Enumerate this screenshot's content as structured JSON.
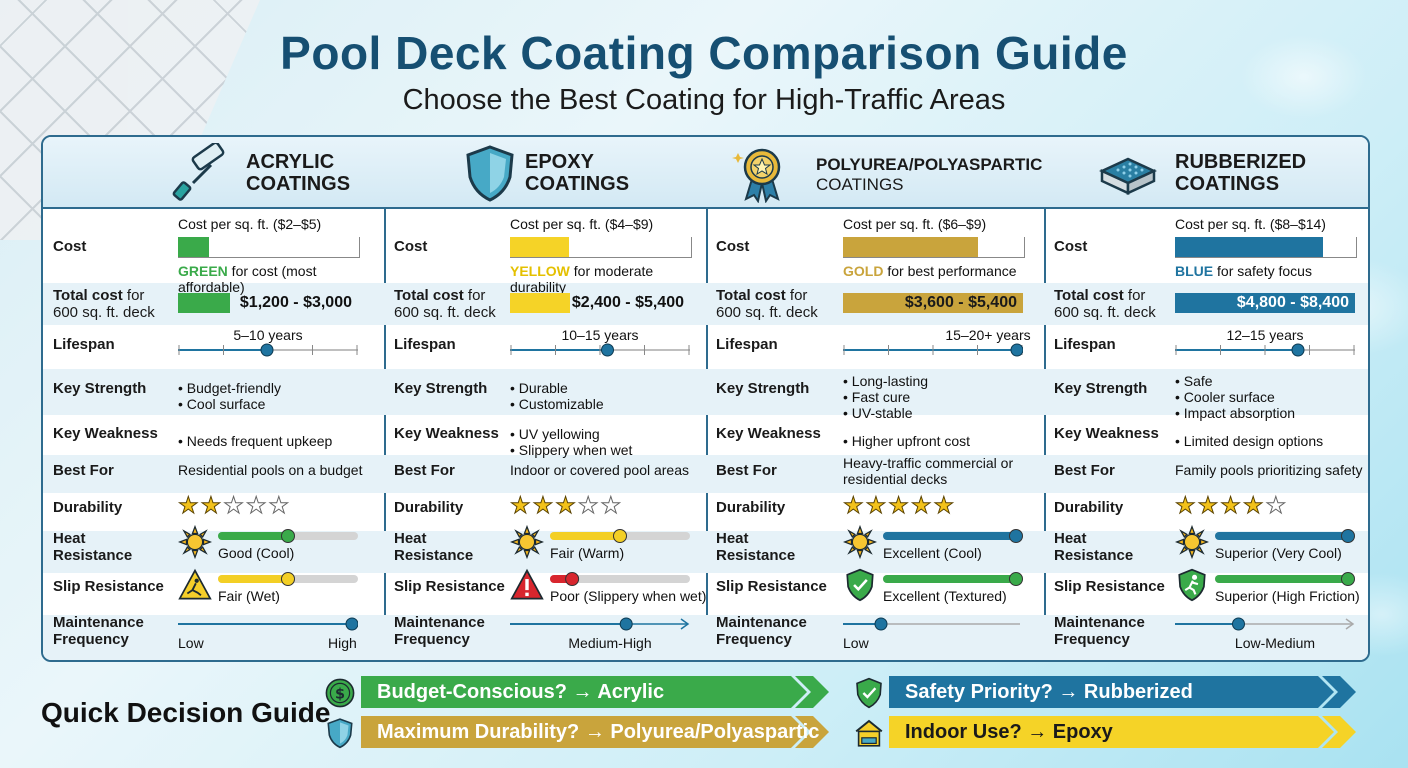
{
  "title": "Pool Deck Coating Comparison Guide",
  "subtitle": "Choose the Best Coating for High-Traffic Areas",
  "row_labels": {
    "cost": "Cost",
    "total_a": "Total cost",
    "total_b": " for",
    "total_c": "600 sq. ft. deck",
    "lifespan": "Lifespan",
    "strength": "Key Strength",
    "weakness": "Key Weakness",
    "best_for": "Best For",
    "durability": "Durability",
    "heat_a": "Heat",
    "heat_b": "Resistance",
    "slip": "Slip Resistance",
    "maint_a": "Maintenance",
    "maint_b": "Frequency"
  },
  "columns": [
    {
      "title_a": "ACRYLIC",
      "title_b": "COATINGS",
      "icon": "paint-roller-icon",
      "cost_range": "Cost per sq. ft. ($2–$5)",
      "cost_fill": 0.17,
      "color_word": "GREEN",
      "color_note": " for cost (most affordable)",
      "color": "#3aaa4a",
      "total_cost": "$1,200 - $3,000",
      "lifespan": "5–10 years",
      "lifespan_level": 0.5,
      "strengths": [
        "• Budget-friendly",
        "• Cool surface"
      ],
      "weaknesses": [
        "• Needs frequent upkeep"
      ],
      "best_for": [
        "Residential pools on a budget"
      ],
      "durability_stars": 2,
      "heat_label": "Good (Cool)",
      "heat_level": 0.5,
      "heat_color": "#3aaa4a",
      "heat_icon": "sun-icon",
      "slip_label": "Fair (Wet)",
      "slip_level": 0.5,
      "slip_color": "#f3cf25",
      "slip_icon": "wet-floor-sign-icon",
      "maint_low": "Low",
      "maint_high": "High",
      "maint_level": 1.0
    },
    {
      "title_a": "EPOXY",
      "title_b": "COATINGS",
      "icon": "shield-icon",
      "cost_range": "Cost per sq. ft. ($4–$9)",
      "cost_fill": 0.33,
      "color_word": "YELLOW",
      "color_note": " for moderate durability",
      "color": "#f5d327",
      "total_cost": "$2,400 - $5,400",
      "lifespan": "10–15 years",
      "lifespan_level": 0.55,
      "strengths": [
        "• Durable",
        "• Customizable"
      ],
      "weaknesses": [
        "• UV yellowing",
        "• Slippery when wet"
      ],
      "best_for": [
        "Indoor or covered pool areas"
      ],
      "durability_stars": 3,
      "heat_label": "Fair (Warm)",
      "heat_level": 0.5,
      "heat_color": "#f3cf25",
      "heat_icon": "sun-icon",
      "slip_label": "Poor (Slippery when wet)",
      "slip_level": 0.12,
      "slip_color": "#d8262e",
      "slip_icon": "warning-icon",
      "maint_low": "",
      "maint_high": "Medium-High",
      "maint_level": 0.66
    },
    {
      "title_a": "POLYUREA/POLYASPARTIC",
      "title_b": "COATINGS",
      "icon": "award-medal-icon",
      "cost_range": "Cost per sq. ft. ($6–$9)",
      "cost_fill": 0.75,
      "color_word": "GOLD",
      "color_note": " for best performance",
      "color": "#c9a43c",
      "total_cost": "$3,600 - $5,400",
      "lifespan": "15–20+ years",
      "lifespan_level": 1.0,
      "strengths": [
        "• Long-lasting",
        "• Fast cure",
        "• UV-stable"
      ],
      "weaknesses": [
        "• Higher upfront cost"
      ],
      "best_for": [
        "Heavy-traffic commercial or",
        "residential decks"
      ],
      "durability_stars": 5,
      "heat_label": "Excellent (Cool)",
      "heat_level": 1.0,
      "heat_color": "#1f74a0",
      "heat_icon": "sun-icon",
      "slip_label": "Excellent (Textured)",
      "slip_level": 1.0,
      "slip_color": "#3aaa4a",
      "slip_icon": "shield-check-icon",
      "maint_low": "Low",
      "maint_high": "",
      "maint_level": 0.2
    },
    {
      "title_a": "RUBBERIZED",
      "title_b": "COATINGS",
      "icon": "rubber-pad-icon",
      "cost_range": "Cost per sq. ft. ($8–$14)",
      "cost_fill": 0.82,
      "color_word": "BLUE",
      "color_note": " for safety focus",
      "color": "#1f74a0",
      "total_cost": "$4,800 - $8,400",
      "lifespan": "12–15 years",
      "lifespan_level": 0.7,
      "strengths": [
        "• Safe",
        "• Cooler surface",
        "• Impact absorption"
      ],
      "weaknesses": [
        "• Limited design options"
      ],
      "best_for": [
        "Family pools prioritizing safety"
      ],
      "durability_stars": 4,
      "heat_label": "Superior (Very Cool)",
      "heat_level": 1.0,
      "heat_color": "#1f74a0",
      "heat_icon": "sun-icon",
      "slip_label": "Superior (High Friction)",
      "slip_level": 1.0,
      "slip_color": "#3aaa4a",
      "slip_icon": "running-person-icon",
      "maint_low": "",
      "maint_high": "Low-Medium",
      "maint_level": 0.35
    }
  ],
  "quick_guide": {
    "title": "Quick Decision Guide",
    "items": [
      {
        "label": "Budget-Conscious? → Acrylic",
        "color": "#3aaa4a",
        "text_color": "#ffffff",
        "icon": "dollar-icon"
      },
      {
        "label": "Safety Priority? → Rubberized",
        "color": "#1f74a0",
        "text_color": "#ffffff",
        "icon": "shield-check-icon"
      },
      {
        "label": "Maximum Durability? → Polyurea/Polyaspartic",
        "color": "#c9a43c",
        "text_color": "#ffffff",
        "icon": "shield-icon"
      },
      {
        "label": "Indoor Use? → Epoxy",
        "color": "#f5d327",
        "text_color": "#1a1a1a",
        "icon": "indoor-pool-icon"
      }
    ]
  }
}
